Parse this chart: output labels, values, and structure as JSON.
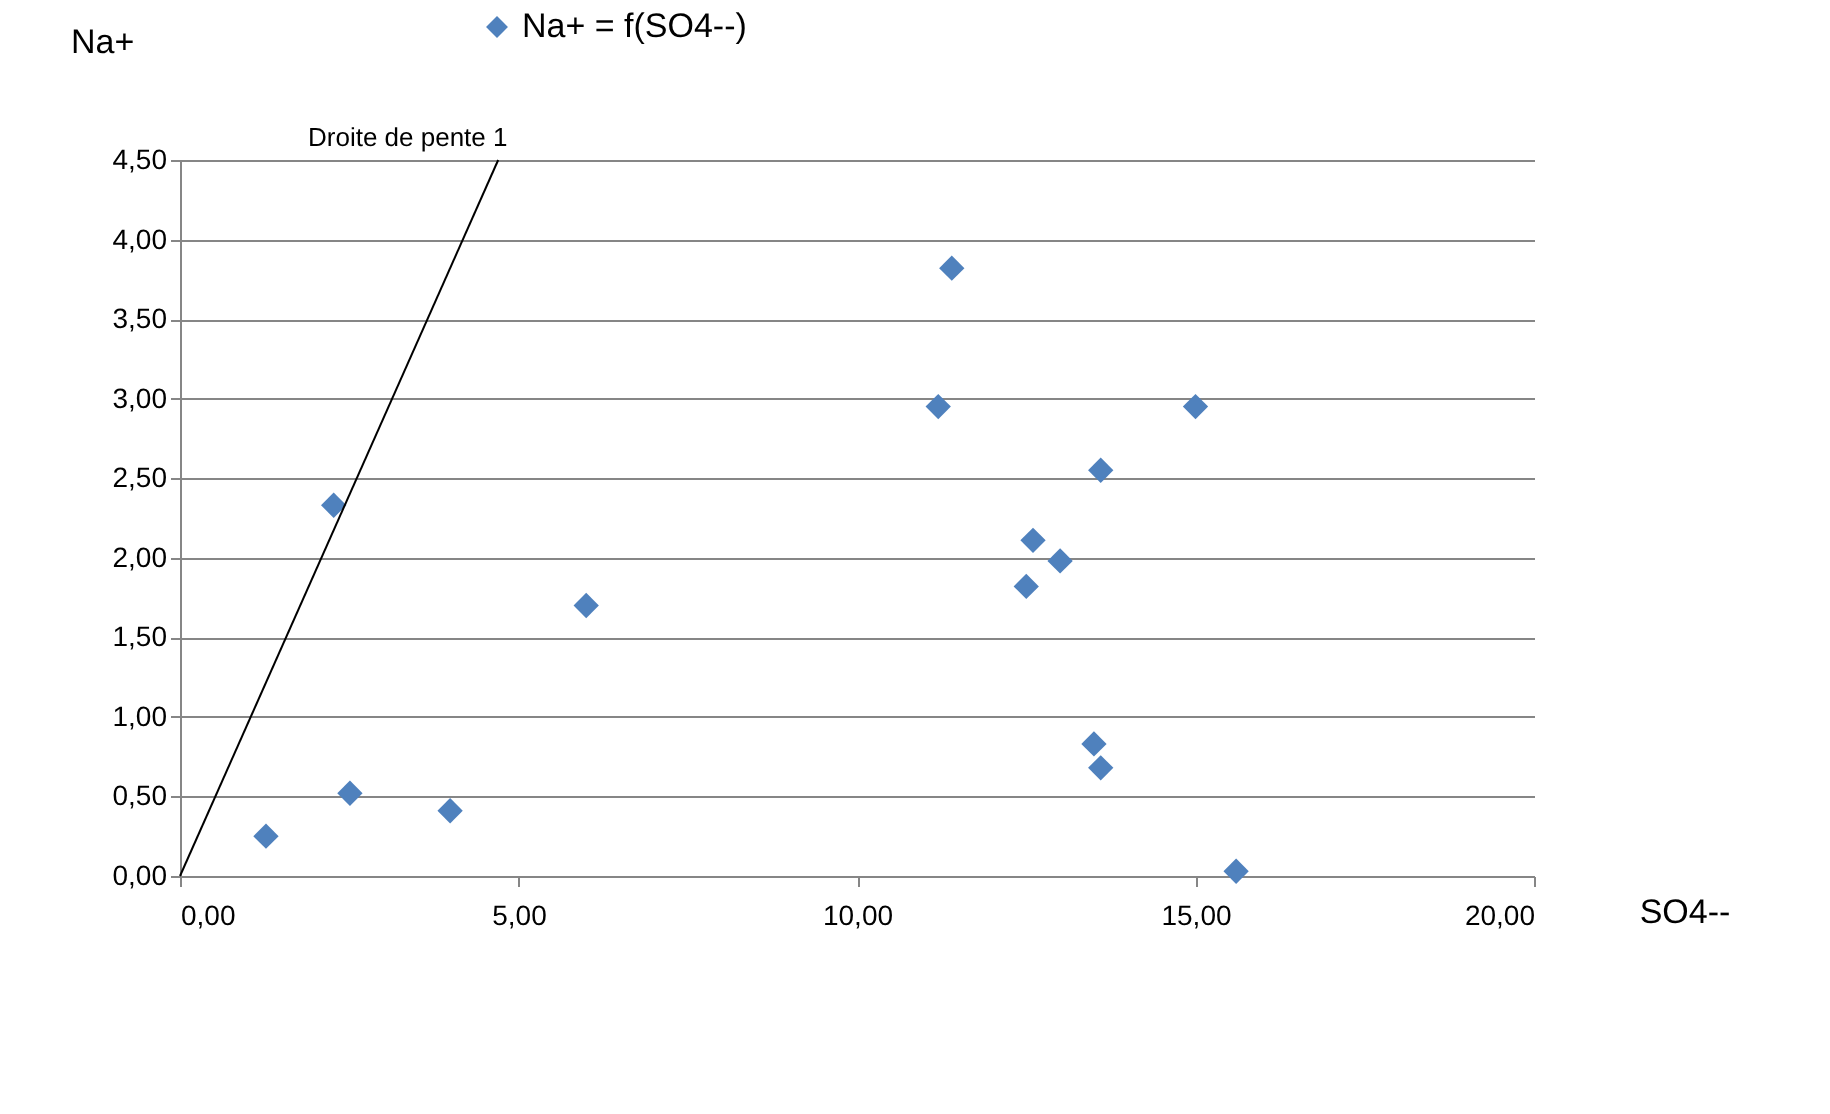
{
  "chart_data": {
    "type": "scatter",
    "xlabel": "SO4--",
    "ylabel": "Na+",
    "series": [
      {
        "name": "Na+ = f(SO4--)",
        "color": "#4f81bd",
        "marker": "diamond",
        "x": [
          1.27,
          2.27,
          2.51,
          3.99,
          6.0,
          11.2,
          11.4,
          12.5,
          12.6,
          13.0,
          13.5,
          13.6,
          13.6,
          15.0,
          15.6
        ],
        "values": [
          0.25,
          2.33,
          0.52,
          0.41,
          1.7,
          2.95,
          3.82,
          1.82,
          2.11,
          1.98,
          0.83,
          0.68,
          2.55,
          2.95,
          0.03
        ]
      },
      {
        "type": "line",
        "color": "#000000",
        "x": [
          0,
          4.7
        ],
        "values": [
          0,
          4.5
        ]
      }
    ],
    "annotations": [
      "Droite de pente 1"
    ],
    "xlim": [
      0,
      20
    ],
    "xticks": [
      {
        "value": 0,
        "label": "0,00"
      },
      {
        "value": 5,
        "label": "5,00"
      },
      {
        "value": 10,
        "label": "10,00"
      },
      {
        "value": 15,
        "label": "15,00"
      },
      {
        "value": 20,
        "label": "20,00"
      }
    ],
    "ylim": [
      0,
      4.5
    ],
    "yticks": [
      {
        "value": 0,
        "label": "0,00"
      },
      {
        "value": 0.5,
        "label": "0,50"
      },
      {
        "value": 1,
        "label": "1,00"
      },
      {
        "value": 1.5,
        "label": "1,50"
      },
      {
        "value": 2,
        "label": "2,00"
      },
      {
        "value": 2.5,
        "label": "2,50"
      },
      {
        "value": 3,
        "label": "3,00"
      },
      {
        "value": 3.5,
        "label": "3,50"
      },
      {
        "value": 4,
        "label": "4,00"
      },
      {
        "value": 4.5,
        "label": "4,50"
      }
    ],
    "grid": "y",
    "legend": "top"
  }
}
